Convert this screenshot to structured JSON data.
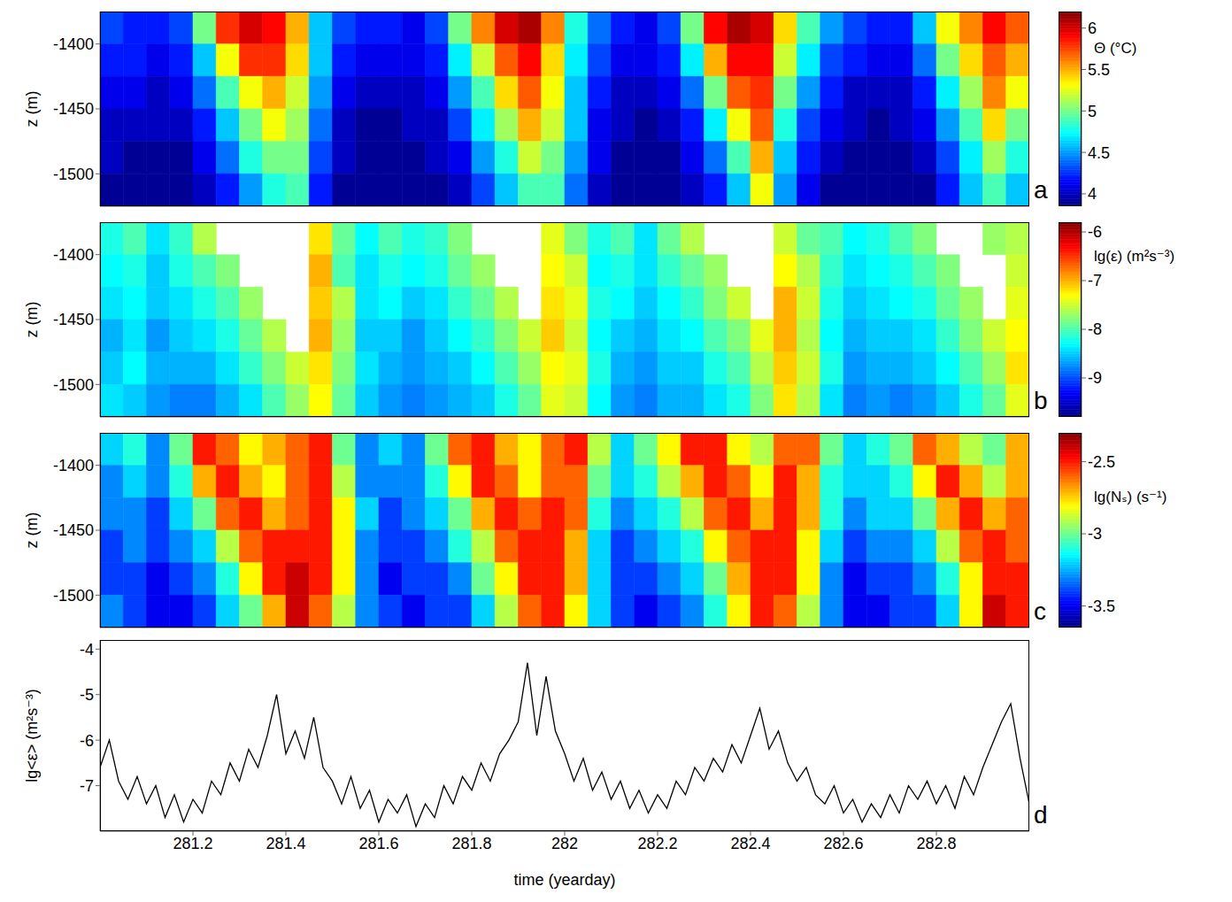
{
  "chart_data": [
    {
      "type": "heatmap",
      "panel_label": "a",
      "y_label": "z (m)",
      "colorbar_label": "Θ (°C)",
      "tick_labels": "y",
      "xlim": [
        281,
        283
      ],
      "xticks": [
        281.2,
        281.4,
        281.6,
        281.8,
        282,
        282.2,
        282.4,
        282.6,
        282.8
      ],
      "ylim": [
        -1525,
        -1375
      ],
      "yticks": [
        -1500,
        -1450,
        -1400
      ],
      "colorbar_range": [
        3.85,
        6.2
      ],
      "colorbar_ticks": [
        4,
        4.5,
        5,
        5.5,
        6
      ],
      "x_bins": [
        281,
        281.05,
        281.1,
        281.15,
        281.2,
        281.25,
        281.3,
        281.35,
        281.4,
        281.45,
        281.5,
        281.55,
        281.6,
        281.65,
        281.7,
        281.75,
        281.8,
        281.85,
        281.9,
        281.95,
        282,
        282.05,
        282.1,
        282.15,
        282.2,
        282.25,
        282.3,
        282.35,
        282.4,
        282.45,
        282.5,
        282.55,
        282.6,
        282.65,
        282.7,
        282.75,
        282.8,
        282.85,
        282.9,
        282.95,
        283
      ],
      "z_bins": [
        -1375,
        -1400,
        -1425,
        -1450,
        -1475,
        -1500,
        -1525
      ],
      "values": [
        [
          4.3,
          4.2,
          4.2,
          4.3,
          5.0,
          5.8,
          6.0,
          5.9,
          5.5,
          4.6,
          4.3,
          4.2,
          4.2,
          4.1,
          4.3,
          5.0,
          5.6,
          6.0,
          6.1,
          5.6,
          4.8,
          4.4,
          4.2,
          4.1,
          4.3,
          5.0,
          5.9,
          6.1,
          6.0,
          5.4,
          4.9,
          4.5,
          4.3,
          4.2,
          4.2,
          4.6,
          5.3,
          5.6,
          5.9,
          5.7
        ],
        [
          4.2,
          4.2,
          4.1,
          4.2,
          4.6,
          5.3,
          5.8,
          5.8,
          5.4,
          4.6,
          4.2,
          4.1,
          4.1,
          4.1,
          4.2,
          4.7,
          5.2,
          5.7,
          5.9,
          5.4,
          4.7,
          4.3,
          4.1,
          4.1,
          4.2,
          4.7,
          5.5,
          5.9,
          5.9,
          5.2,
          4.7,
          4.3,
          4.2,
          4.1,
          4.1,
          4.4,
          5.0,
          5.4,
          5.7,
          5.5
        ],
        [
          4.1,
          4.1,
          4.0,
          4.1,
          4.4,
          4.9,
          5.3,
          5.5,
          5.2,
          4.5,
          4.1,
          4.0,
          4.0,
          4.0,
          4.1,
          4.5,
          4.9,
          5.4,
          5.7,
          5.3,
          4.6,
          4.2,
          4.0,
          4.0,
          4.1,
          4.4,
          5.0,
          5.7,
          5.8,
          5.0,
          4.5,
          4.2,
          4.0,
          4.0,
          4.0,
          4.2,
          4.7,
          5.1,
          5.6,
          5.3
        ],
        [
          4.0,
          4.0,
          4.0,
          4.0,
          4.2,
          4.6,
          5.0,
          5.3,
          5.1,
          4.4,
          4.0,
          3.9,
          3.9,
          4.0,
          4.0,
          4.3,
          4.7,
          5.1,
          5.5,
          5.2,
          4.6,
          4.1,
          4.0,
          3.9,
          4.0,
          4.2,
          4.7,
          5.3,
          5.7,
          4.8,
          4.3,
          4.1,
          4.0,
          3.9,
          4.0,
          4.1,
          4.5,
          4.9,
          5.4,
          5.0
        ],
        [
          4.0,
          3.9,
          3.9,
          3.9,
          4.1,
          4.4,
          4.8,
          5.0,
          5.0,
          4.3,
          4.0,
          3.9,
          3.9,
          3.9,
          4.0,
          4.1,
          4.5,
          4.8,
          5.2,
          5.0,
          4.5,
          4.1,
          3.9,
          3.9,
          3.9,
          4.1,
          4.4,
          4.9,
          5.5,
          4.6,
          4.2,
          4.0,
          3.9,
          3.9,
          3.9,
          4.0,
          4.3,
          4.7,
          5.1,
          4.8
        ],
        [
          3.9,
          3.9,
          3.9,
          3.9,
          4.0,
          4.2,
          4.5,
          4.8,
          4.9,
          4.2,
          3.9,
          3.9,
          3.9,
          3.9,
          3.9,
          4.0,
          4.3,
          4.6,
          4.9,
          4.9,
          4.4,
          4.0,
          3.9,
          3.9,
          3.9,
          4.0,
          4.2,
          4.6,
          5.3,
          4.5,
          4.1,
          3.9,
          3.9,
          3.9,
          3.9,
          3.9,
          4.2,
          4.6,
          4.9,
          4.6
        ]
      ]
    },
    {
      "type": "heatmap",
      "panel_label": "b",
      "y_label": "z (m)",
      "colorbar_label": "lg(ε) (m²s⁻³)",
      "tick_labels": "y",
      "xlim": [
        281,
        283
      ],
      "xticks": [
        281.2,
        281.4,
        281.6,
        281.8,
        282,
        282.2,
        282.4,
        282.6,
        282.8
      ],
      "ylim": [
        -1525,
        -1375
      ],
      "yticks": [
        -1500,
        -1450,
        -1400
      ],
      "colorbar_range": [
        -9.8,
        -5.8
      ],
      "colorbar_ticks": [
        -9,
        -8,
        -7,
        -6
      ],
      "x_bins": [
        281,
        281.05,
        281.1,
        281.15,
        281.2,
        281.25,
        281.3,
        281.35,
        281.4,
        281.45,
        281.5,
        281.55,
        281.6,
        281.65,
        281.7,
        281.75,
        281.8,
        281.85,
        281.9,
        281.95,
        282,
        282.05,
        282.1,
        282.15,
        282.2,
        282.25,
        282.3,
        282.35,
        282.4,
        282.45,
        282.5,
        282.55,
        282.6,
        282.65,
        282.7,
        282.75,
        282.8,
        282.85,
        282.9,
        282.95,
        283
      ],
      "z_bins": [
        -1375,
        -1400,
        -1425,
        -1450,
        -1475,
        -1500,
        -1525
      ],
      "values": [
        [
          -8.2,
          -8.0,
          -8.4,
          -8.1,
          -7.6,
          null,
          null,
          null,
          null,
          -7.2,
          -7.9,
          -8.3,
          -8.0,
          -8.2,
          -8.1,
          -7.8,
          null,
          null,
          null,
          -7.4,
          -7.8,
          -8.2,
          -8.0,
          -8.4,
          -7.9,
          -7.6,
          null,
          null,
          null,
          -7.5,
          -7.9,
          -8.0,
          -8.3,
          -8.2,
          -8.0,
          -7.8,
          null,
          null,
          -7.7,
          -7.6
        ],
        [
          -8.3,
          -8.2,
          -8.5,
          -8.2,
          -8.0,
          -7.8,
          null,
          null,
          null,
          -7.0,
          -8.0,
          -8.4,
          -8.2,
          -8.3,
          -8.2,
          -7.9,
          -7.7,
          null,
          null,
          -7.3,
          -7.5,
          -8.3,
          -8.2,
          -8.4,
          -8.1,
          -7.9,
          -7.7,
          null,
          null,
          -7.3,
          -7.6,
          -8.1,
          -8.4,
          -8.3,
          -8.2,
          -8.0,
          -7.8,
          null,
          null,
          -7.5
        ],
        [
          -8.4,
          -8.3,
          -8.5,
          -8.4,
          -8.2,
          -8.0,
          -7.7,
          null,
          null,
          -7.1,
          -7.6,
          -8.4,
          -8.3,
          -8.5,
          -8.4,
          -8.1,
          -7.9,
          -7.6,
          null,
          -7.2,
          -7.4,
          -8.2,
          -8.3,
          -8.5,
          -8.3,
          -8.1,
          -7.8,
          -7.5,
          null,
          -7.0,
          -7.5,
          -8.2,
          -8.5,
          -8.4,
          -8.3,
          -8.2,
          -7.9,
          -7.7,
          null,
          -7.4
        ],
        [
          -8.6,
          -8.4,
          -8.7,
          -8.5,
          -8.4,
          -8.2,
          -7.9,
          -7.6,
          null,
          -7.0,
          -7.7,
          -8.5,
          -8.5,
          -8.7,
          -8.5,
          -8.3,
          -8.1,
          -7.8,
          -7.5,
          -7.1,
          -7.5,
          -8.3,
          -8.5,
          -8.6,
          -8.4,
          -8.3,
          -8.0,
          -7.8,
          -7.4,
          -7.0,
          -7.6,
          -8.3,
          -8.6,
          -8.5,
          -8.5,
          -8.4,
          -8.1,
          -7.8,
          -7.5,
          -7.3
        ],
        [
          -8.5,
          -8.3,
          -8.6,
          -8.6,
          -8.6,
          -8.4,
          -8.1,
          -7.8,
          -7.5,
          -7.2,
          -7.8,
          -8.4,
          -8.6,
          -8.7,
          -8.6,
          -8.5,
          -8.3,
          -8.0,
          -7.7,
          -7.3,
          -7.4,
          -8.2,
          -8.6,
          -8.7,
          -8.5,
          -8.5,
          -8.2,
          -8.0,
          -7.6,
          -7.1,
          -7.5,
          -8.2,
          -8.7,
          -8.6,
          -8.6,
          -8.5,
          -8.3,
          -8.0,
          -7.7,
          -7.2
        ],
        [
          -8.4,
          -8.5,
          -8.7,
          -8.8,
          -8.8,
          -8.6,
          -8.4,
          -8.0,
          -7.7,
          -7.3,
          -7.9,
          -8.5,
          -8.7,
          -8.8,
          -8.7,
          -8.6,
          -8.5,
          -8.2,
          -7.9,
          -7.4,
          -7.5,
          -8.3,
          -8.7,
          -8.8,
          -8.6,
          -8.6,
          -8.4,
          -8.2,
          -7.8,
          -7.2,
          -7.6,
          -8.4,
          -8.8,
          -8.7,
          -8.8,
          -8.7,
          -8.5,
          -8.2,
          -7.9,
          -7.4
        ]
      ]
    },
    {
      "type": "heatmap",
      "panel_label": "c",
      "y_label": "z (m)",
      "colorbar_label": "lg(Nₛ) (s⁻¹)",
      "tick_labels": "y",
      "xlim": [
        281,
        283
      ],
      "xticks": [
        281.2,
        281.4,
        281.6,
        281.8,
        282,
        282.2,
        282.4,
        282.6,
        282.8
      ],
      "ylim": [
        -1525,
        -1375
      ],
      "yticks": [
        -1500,
        -1450,
        -1400
      ],
      "colorbar_range": [
        -3.65,
        -2.3
      ],
      "colorbar_ticks": [
        -3.5,
        -3,
        -2.5
      ],
      "x_bins": [
        281,
        281.05,
        281.1,
        281.15,
        281.2,
        281.25,
        281.3,
        281.35,
        281.4,
        281.45,
        281.5,
        281.55,
        281.6,
        281.65,
        281.7,
        281.75,
        281.8,
        281.85,
        281.9,
        281.95,
        282,
        282.05,
        282.1,
        282.15,
        282.2,
        282.25,
        282.3,
        282.35,
        282.4,
        282.45,
        282.5,
        282.55,
        282.6,
        282.65,
        282.7,
        282.75,
        282.8,
        282.85,
        282.9,
        282.95,
        283
      ],
      "z_bins": [
        -1375,
        -1400,
        -1425,
        -1450,
        -1475,
        -1500,
        -1525
      ],
      "values": [
        [
          -3.2,
          -3.1,
          -3.3,
          -3.0,
          -2.5,
          -2.6,
          -2.8,
          -2.7,
          -2.6,
          -2.5,
          -3.0,
          -3.3,
          -3.2,
          -3.3,
          -3.0,
          -2.6,
          -2.5,
          -2.7,
          -2.8,
          -2.6,
          -2.5,
          -2.9,
          -3.2,
          -3.0,
          -2.8,
          -2.5,
          -2.5,
          -2.8,
          -2.9,
          -2.6,
          -2.6,
          -3.0,
          -3.2,
          -3.1,
          -3.0,
          -2.6,
          -2.7,
          -2.9,
          -3.0,
          -2.7
        ],
        [
          -3.3,
          -3.2,
          -3.3,
          -3.1,
          -2.7,
          -2.5,
          -2.7,
          -2.8,
          -2.6,
          -2.5,
          -2.9,
          -3.3,
          -3.3,
          -3.3,
          -3.1,
          -2.8,
          -2.5,
          -2.6,
          -2.8,
          -2.6,
          -2.6,
          -3.0,
          -3.2,
          -3.1,
          -2.9,
          -2.7,
          -2.5,
          -2.6,
          -2.8,
          -2.5,
          -2.7,
          -3.1,
          -3.2,
          -3.2,
          -3.1,
          -2.8,
          -2.5,
          -2.7,
          -2.9,
          -2.7
        ],
        [
          -3.3,
          -3.3,
          -3.4,
          -3.2,
          -3.0,
          -2.6,
          -2.5,
          -2.7,
          -2.6,
          -2.5,
          -2.8,
          -3.2,
          -3.4,
          -3.3,
          -3.2,
          -3.0,
          -2.7,
          -2.5,
          -2.6,
          -2.5,
          -2.6,
          -3.1,
          -3.3,
          -3.2,
          -3.1,
          -2.9,
          -2.6,
          -2.5,
          -2.7,
          -2.5,
          -2.7,
          -3.1,
          -3.3,
          -3.2,
          -3.2,
          -3.0,
          -2.7,
          -2.5,
          -2.7,
          -2.6
        ],
        [
          -3.4,
          -3.3,
          -3.4,
          -3.3,
          -3.2,
          -2.9,
          -2.6,
          -2.5,
          -2.5,
          -2.5,
          -2.8,
          -3.3,
          -3.4,
          -3.4,
          -3.3,
          -3.1,
          -2.9,
          -2.6,
          -2.5,
          -2.5,
          -2.7,
          -3.2,
          -3.4,
          -3.3,
          -3.2,
          -3.1,
          -2.8,
          -2.6,
          -2.5,
          -2.5,
          -2.8,
          -3.2,
          -3.4,
          -3.3,
          -3.3,
          -3.2,
          -2.9,
          -2.6,
          -2.5,
          -2.6
        ],
        [
          -3.4,
          -3.4,
          -3.5,
          -3.4,
          -3.3,
          -3.1,
          -2.8,
          -2.5,
          -2.4,
          -2.5,
          -2.8,
          -3.3,
          -3.5,
          -3.4,
          -3.4,
          -3.3,
          -3.0,
          -2.8,
          -2.5,
          -2.5,
          -2.7,
          -3.2,
          -3.4,
          -3.4,
          -3.3,
          -3.2,
          -3.0,
          -2.7,
          -2.5,
          -2.5,
          -2.8,
          -3.3,
          -3.5,
          -3.4,
          -3.4,
          -3.3,
          -3.1,
          -2.8,
          -2.5,
          -2.5
        ],
        [
          -3.3,
          -3.4,
          -3.5,
          -3.5,
          -3.4,
          -3.2,
          -3.0,
          -2.7,
          -2.4,
          -2.6,
          -2.9,
          -3.3,
          -3.4,
          -3.5,
          -3.4,
          -3.4,
          -3.2,
          -2.9,
          -2.6,
          -2.5,
          -2.8,
          -3.2,
          -3.4,
          -3.5,
          -3.4,
          -3.3,
          -3.1,
          -2.8,
          -2.5,
          -2.6,
          -2.9,
          -3.3,
          -3.5,
          -3.5,
          -3.4,
          -3.4,
          -3.2,
          -2.8,
          -2.4,
          -2.5
        ]
      ]
    },
    {
      "type": "line",
      "panel_label": "d",
      "y_label": "lg<ε> (m²s⁻³)",
      "x_label": "time (yearday)",
      "color": "#000000",
      "xlim": [
        281,
        283
      ],
      "xticks": [
        281.2,
        281.4,
        281.6,
        281.8,
        282,
        282.2,
        282.4,
        282.6,
        282.8
      ],
      "ylim": [
        -8,
        -3.8
      ],
      "yticks": [
        -7,
        -6,
        -5,
        -4
      ],
      "x": [
        281,
        281.02,
        281.04,
        281.06,
        281.08,
        281.1,
        281.12,
        281.14,
        281.16,
        281.18,
        281.2,
        281.22,
        281.24,
        281.26,
        281.28,
        281.3,
        281.32,
        281.34,
        281.36,
        281.38,
        281.4,
        281.42,
        281.44,
        281.46,
        281.48,
        281.5,
        281.52,
        281.54,
        281.56,
        281.58,
        281.6,
        281.62,
        281.64,
        281.66,
        281.68,
        281.7,
        281.72,
        281.74,
        281.76,
        281.78,
        281.8,
        281.82,
        281.84,
        281.86,
        281.88,
        281.9,
        281.92,
        281.94,
        281.96,
        281.98,
        282,
        282.02,
        282.04,
        282.06,
        282.08,
        282.1,
        282.12,
        282.14,
        282.16,
        282.18,
        282.2,
        282.22,
        282.24,
        282.26,
        282.28,
        282.3,
        282.32,
        282.34,
        282.36,
        282.38,
        282.4,
        282.42,
        282.44,
        282.46,
        282.48,
        282.5,
        282.52,
        282.54,
        282.56,
        282.58,
        282.6,
        282.62,
        282.64,
        282.66,
        282.68,
        282.7,
        282.72,
        282.74,
        282.76,
        282.78,
        282.8,
        282.82,
        282.84,
        282.86,
        282.88,
        282.9,
        282.92,
        282.94,
        282.96,
        282.98,
        283
      ],
      "values": [
        -6.6,
        -6.0,
        -6.9,
        -7.3,
        -6.8,
        -7.4,
        -7.0,
        -7.7,
        -7.2,
        -7.8,
        -7.3,
        -7.6,
        -6.9,
        -7.2,
        -6.5,
        -6.9,
        -6.2,
        -6.6,
        -5.9,
        -5.0,
        -6.3,
        -5.8,
        -6.4,
        -5.5,
        -6.6,
        -6.9,
        -7.4,
        -6.8,
        -7.5,
        -7.1,
        -7.8,
        -7.3,
        -7.6,
        -7.2,
        -7.9,
        -7.4,
        -7.7,
        -7.0,
        -7.4,
        -6.8,
        -7.1,
        -6.5,
        -6.9,
        -6.3,
        -6.0,
        -5.6,
        -4.3,
        -5.9,
        -4.6,
        -5.8,
        -6.3,
        -6.9,
        -6.4,
        -7.1,
        -6.7,
        -7.3,
        -6.9,
        -7.5,
        -7.1,
        -7.6,
        -7.2,
        -7.5,
        -6.9,
        -7.2,
        -6.6,
        -6.9,
        -6.4,
        -6.7,
        -6.1,
        -6.5,
        -5.9,
        -5.3,
        -6.2,
        -5.8,
        -6.5,
        -6.9,
        -6.6,
        -7.2,
        -7.4,
        -7.0,
        -7.6,
        -7.3,
        -7.8,
        -7.4,
        -7.7,
        -7.2,
        -7.6,
        -7.0,
        -7.3,
        -6.9,
        -7.4,
        -7.0,
        -7.5,
        -6.8,
        -7.2,
        -6.6,
        -6.1,
        -5.6,
        -5.2,
        -6.4,
        -7.4
      ]
    }
  ]
}
